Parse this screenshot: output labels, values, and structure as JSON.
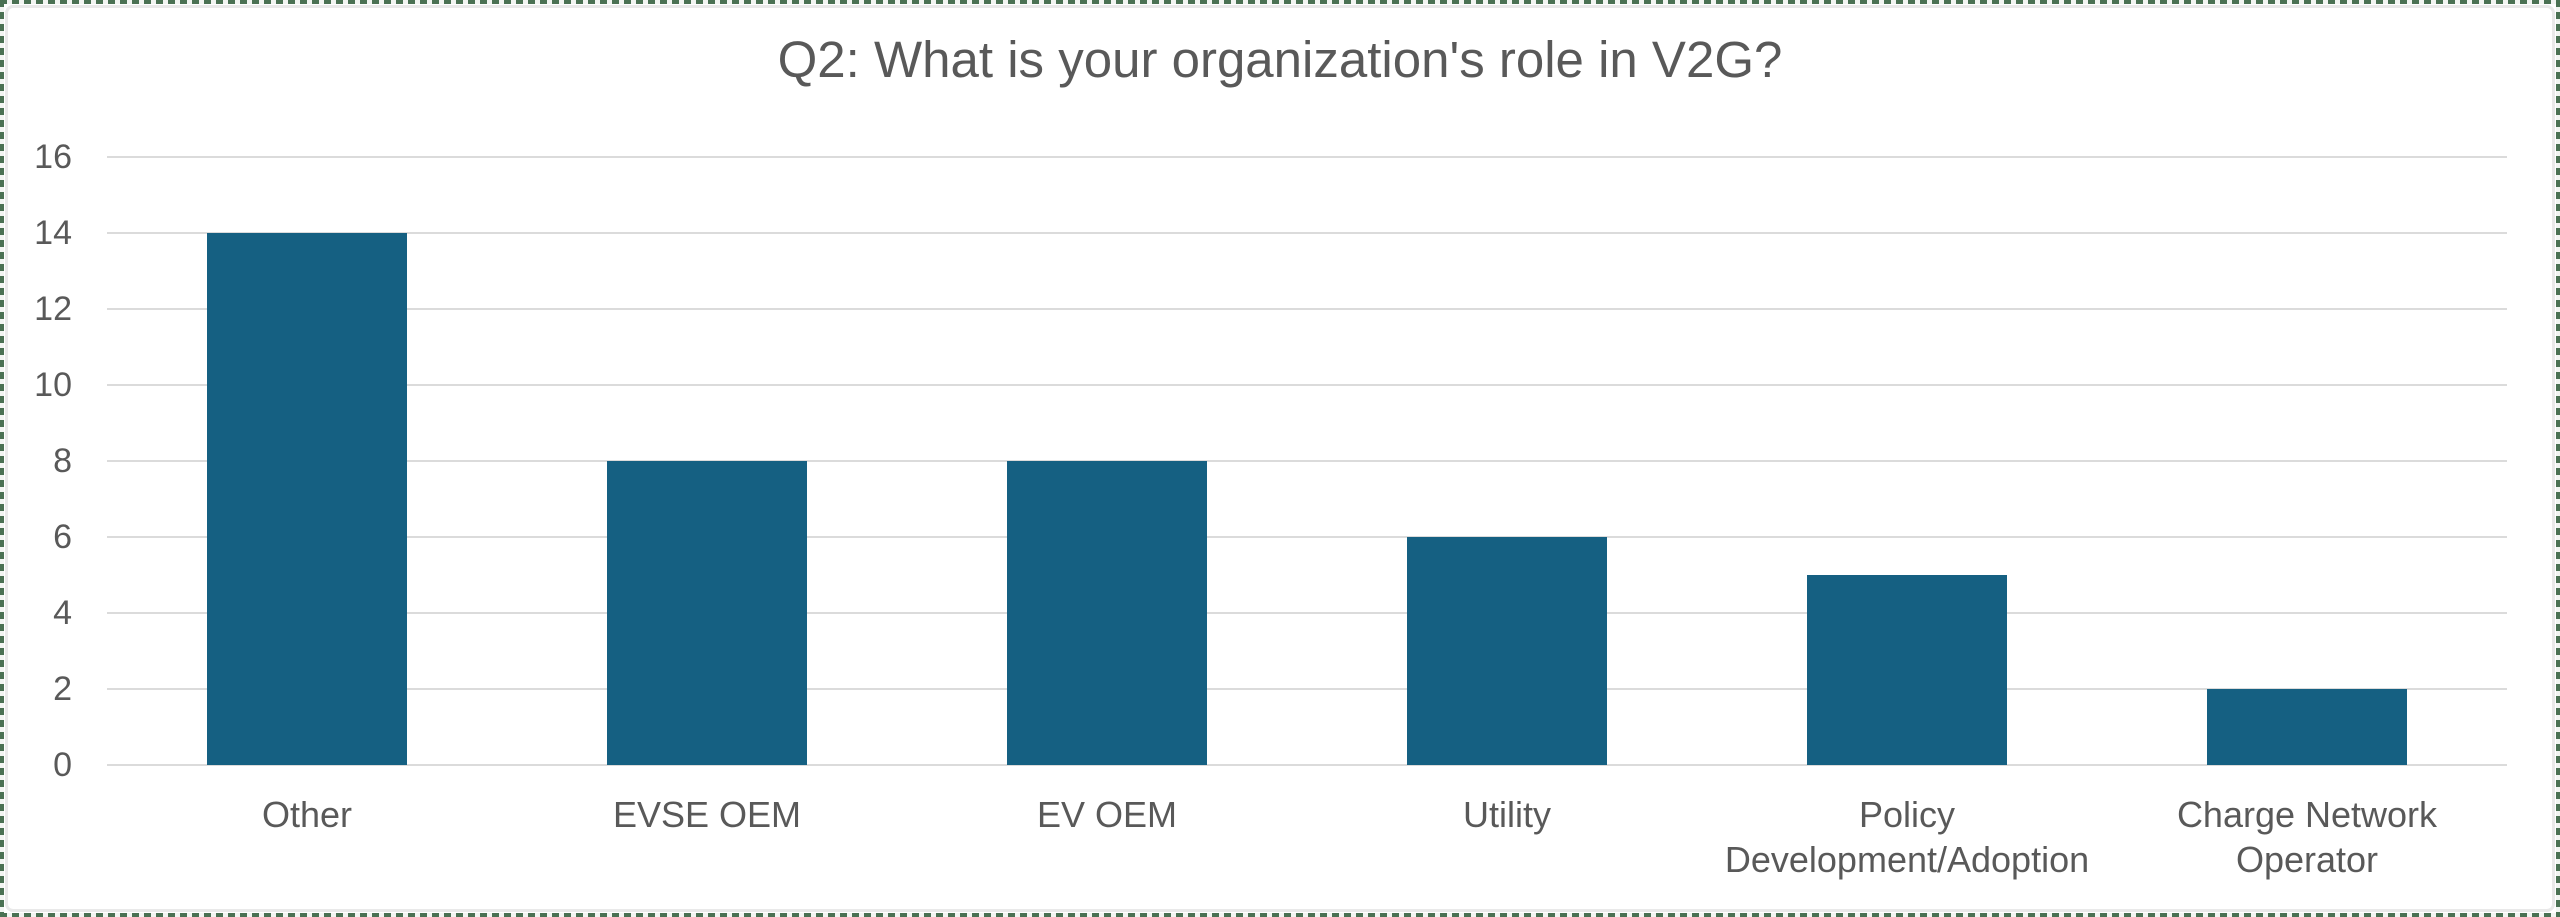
{
  "canvas": {
    "background": "#FFFFFF",
    "marquee_border_color": "#4A7153",
    "chart_frame_color": "#E9E9E9"
  },
  "chart_data": {
    "type": "bar",
    "title": "Q2: What is your organization's role in V2G?",
    "categories": [
      "Other",
      "EVSE OEM",
      "EV OEM",
      "Utility",
      "Policy Development/Adoption",
      "Charge Network Operator"
    ],
    "category_label_lines": [
      [
        "Other"
      ],
      [
        "EVSE OEM"
      ],
      [
        "EV OEM"
      ],
      [
        "Utility"
      ],
      [
        "Policy",
        "Development/Adoption"
      ],
      [
        "Charge Network",
        "Operator"
      ]
    ],
    "values": [
      14,
      8,
      8,
      6,
      5,
      2
    ],
    "xlabel": "",
    "ylabel": "",
    "ylim": [
      0,
      16
    ],
    "yticks": [
      0,
      2,
      4,
      6,
      8,
      10,
      12,
      14,
      16
    ],
    "grid": true,
    "legend": false,
    "bar_color": "#156082",
    "gridline_color": "#DBDBDB",
    "title_color": "#595959",
    "axis_text_color": "#595959"
  }
}
